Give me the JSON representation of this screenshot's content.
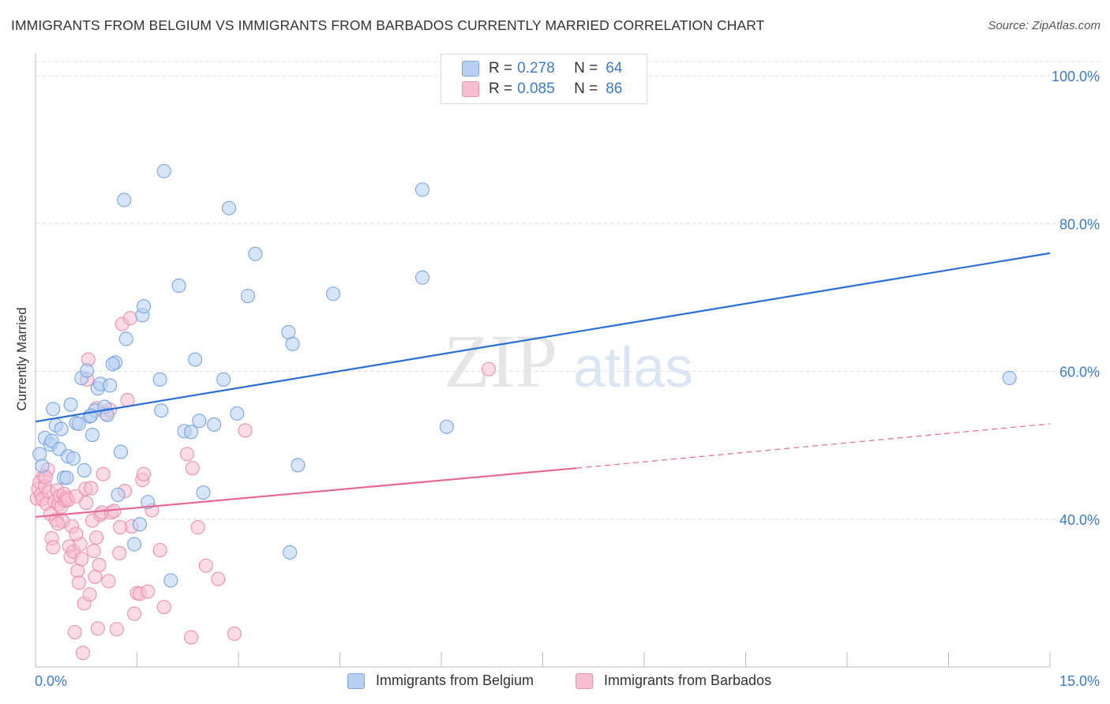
{
  "title": "IMMIGRANTS FROM BELGIUM VS IMMIGRANTS FROM BARBADOS CURRENTLY MARRIED CORRELATION CHART",
  "source": "Source: ZipAtlas.com",
  "watermark": {
    "zip": "ZIP",
    "atlas": "atlas"
  },
  "legend": {
    "rows": [
      {
        "r_label": "R =",
        "r_value": "0.278",
        "n_label": "N =",
        "n_value": "64"
      },
      {
        "r_label": "R =",
        "r_value": "0.085",
        "n_label": "N =",
        "n_value": "86"
      }
    ]
  },
  "colors": {
    "belgium_fill": "#b7d0f2",
    "belgium_stroke": "#7aa6e0",
    "belgium_line": "#2a6fd6",
    "barbados_fill": "#f7bfd1",
    "barbados_stroke": "#ec90ae",
    "barbados_line": "#e46894",
    "tick_text": "#3a7bd5"
  },
  "chart_data": {
    "type": "scatter",
    "xlabel": "",
    "ylabel": "Currently Married",
    "xlim": [
      0,
      15
    ],
    "ylim": [
      20.0,
      103.0
    ],
    "x_tick_labels": [
      {
        "value": 0,
        "label": "0.0%"
      },
      {
        "value": 15,
        "label": "15.0%"
      }
    ],
    "y_tick_labels": [
      {
        "value": 40,
        "label": "40.0%"
      },
      {
        "value": 60,
        "label": "60.0%"
      },
      {
        "value": 80,
        "label": "80.0%"
      },
      {
        "value": 100,
        "label": "100.0%"
      }
    ],
    "series": [
      {
        "name": "Immigrants from Belgium",
        "R": 0.278,
        "N": 64,
        "trend": {
          "x0": 0,
          "y0": 53.2,
          "x1": 15,
          "y1": 76.0
        },
        "points": [
          [
            0.06,
            48.8
          ],
          [
            0.1,
            47.2
          ],
          [
            0.14,
            51.0
          ],
          [
            0.22,
            50.1
          ],
          [
            0.24,
            50.6
          ],
          [
            0.26,
            54.9
          ],
          [
            0.3,
            52.7
          ],
          [
            0.35,
            49.5
          ],
          [
            0.38,
            52.2
          ],
          [
            0.42,
            45.6
          ],
          [
            0.48,
            48.5
          ],
          [
            0.52,
            55.5
          ],
          [
            0.56,
            48.2
          ],
          [
            0.6,
            53.0
          ],
          [
            0.64,
            52.9
          ],
          [
            0.68,
            59.1
          ],
          [
            0.72,
            46.6
          ],
          [
            0.76,
            60.1
          ],
          [
            0.8,
            53.9
          ],
          [
            0.84,
            51.4
          ],
          [
            0.88,
            54.7
          ],
          [
            0.92,
            57.7
          ],
          [
            0.96,
            58.3
          ],
          [
            1.02,
            55.2
          ],
          [
            1.06,
            54.1
          ],
          [
            1.1,
            58.1
          ],
          [
            1.18,
            61.2
          ],
          [
            1.22,
            43.3
          ],
          [
            1.26,
            49.1
          ],
          [
            1.31,
            83.2
          ],
          [
            1.34,
            64.4
          ],
          [
            1.46,
            36.6
          ],
          [
            1.54,
            39.3
          ],
          [
            1.58,
            67.6
          ],
          [
            1.6,
            68.8
          ],
          [
            1.66,
            42.3
          ],
          [
            1.84,
            58.9
          ],
          [
            1.86,
            54.7
          ],
          [
            1.9,
            87.1
          ],
          [
            2.0,
            31.7
          ],
          [
            2.12,
            71.6
          ],
          [
            2.2,
            51.9
          ],
          [
            2.3,
            51.8
          ],
          [
            2.36,
            61.6
          ],
          [
            2.42,
            53.3
          ],
          [
            2.48,
            43.6
          ],
          [
            2.64,
            52.8
          ],
          [
            2.78,
            58.9
          ],
          [
            2.86,
            82.1
          ],
          [
            2.98,
            54.3
          ],
          [
            3.14,
            70.2
          ],
          [
            3.25,
            75.9
          ],
          [
            3.74,
            65.3
          ],
          [
            3.8,
            63.7
          ],
          [
            3.88,
            47.3
          ],
          [
            3.76,
            35.5
          ],
          [
            4.4,
            70.5
          ],
          [
            5.72,
            84.6
          ],
          [
            5.72,
            72.7
          ],
          [
            6.08,
            52.5
          ],
          [
            14.4,
            59.1
          ],
          [
            0.82,
            54.0
          ],
          [
            1.14,
            61.0
          ],
          [
            0.46,
            45.6
          ]
        ]
      },
      {
        "name": "Immigrants from Barbados",
        "R": 0.085,
        "N": 86,
        "trend": {
          "x0": 0,
          "y0": 40.3,
          "x1": 8.0,
          "y1": 46.9,
          "dash_x1": 15,
          "dash_y1": 52.9
        },
        "points": [
          [
            0.02,
            42.8
          ],
          [
            0.04,
            44.1
          ],
          [
            0.06,
            45.0
          ],
          [
            0.08,
            43.3
          ],
          [
            0.1,
            42.7
          ],
          [
            0.12,
            45.8
          ],
          [
            0.14,
            44.4
          ],
          [
            0.16,
            42.1
          ],
          [
            0.18,
            46.7
          ],
          [
            0.2,
            43.7
          ],
          [
            0.22,
            40.7
          ],
          [
            0.24,
            37.4
          ],
          [
            0.26,
            36.2
          ],
          [
            0.28,
            42.4
          ],
          [
            0.3,
            39.9
          ],
          [
            0.32,
            43.9
          ],
          [
            0.34,
            42.0
          ],
          [
            0.36,
            43.1
          ],
          [
            0.38,
            41.7
          ],
          [
            0.4,
            39.7
          ],
          [
            0.42,
            43.4
          ],
          [
            0.44,
            42.5
          ],
          [
            0.46,
            42.9
          ],
          [
            0.48,
            42.6
          ],
          [
            0.5,
            36.3
          ],
          [
            0.52,
            34.9
          ],
          [
            0.54,
            39.0
          ],
          [
            0.56,
            35.6
          ],
          [
            0.58,
            24.7
          ],
          [
            0.6,
            43.1
          ],
          [
            0.62,
            33.0
          ],
          [
            0.64,
            31.4
          ],
          [
            0.66,
            36.6
          ],
          [
            0.68,
            34.6
          ],
          [
            0.7,
            21.9
          ],
          [
            0.72,
            28.6
          ],
          [
            0.74,
            44.1
          ],
          [
            0.76,
            58.9
          ],
          [
            0.78,
            61.6
          ],
          [
            0.8,
            29.8
          ],
          [
            0.82,
            44.2
          ],
          [
            0.84,
            39.8
          ],
          [
            0.86,
            35.7
          ],
          [
            0.88,
            32.2
          ],
          [
            0.9,
            37.5
          ],
          [
            0.92,
            25.2
          ],
          [
            0.94,
            33.8
          ],
          [
            0.96,
            40.6
          ],
          [
            0.98,
            40.9
          ],
          [
            1.0,
            46.1
          ],
          [
            1.04,
            54.3
          ],
          [
            1.08,
            31.6
          ],
          [
            1.12,
            40.9
          ],
          [
            1.16,
            41.1
          ],
          [
            1.2,
            25.1
          ],
          [
            1.24,
            35.4
          ],
          [
            1.28,
            66.4
          ],
          [
            1.32,
            43.8
          ],
          [
            1.36,
            56.1
          ],
          [
            1.42,
            39.0
          ],
          [
            1.46,
            27.2
          ],
          [
            1.5,
            30.0
          ],
          [
            1.54,
            29.9
          ],
          [
            1.58,
            45.3
          ],
          [
            1.6,
            46.1
          ],
          [
            1.66,
            30.2
          ],
          [
            1.72,
            41.2
          ],
          [
            1.84,
            35.8
          ],
          [
            1.9,
            28.1
          ],
          [
            2.24,
            48.8
          ],
          [
            2.32,
            46.9
          ],
          [
            2.4,
            38.9
          ],
          [
            2.52,
            33.7
          ],
          [
            2.7,
            31.9
          ],
          [
            2.94,
            24.5
          ],
          [
            2.3,
            24.0
          ],
          [
            3.1,
            52.0
          ],
          [
            6.7,
            60.3
          ],
          [
            1.4,
            67.2
          ],
          [
            0.9,
            55.0
          ],
          [
            1.1,
            54.8
          ],
          [
            0.6,
            38.0
          ],
          [
            0.33,
            39.4
          ],
          [
            0.15,
            45.7
          ],
          [
            1.25,
            38.9
          ],
          [
            0.75,
            42.2
          ]
        ]
      }
    ]
  },
  "bottom_legend": [
    "Immigrants from Belgium",
    "Immigrants from Barbados"
  ]
}
